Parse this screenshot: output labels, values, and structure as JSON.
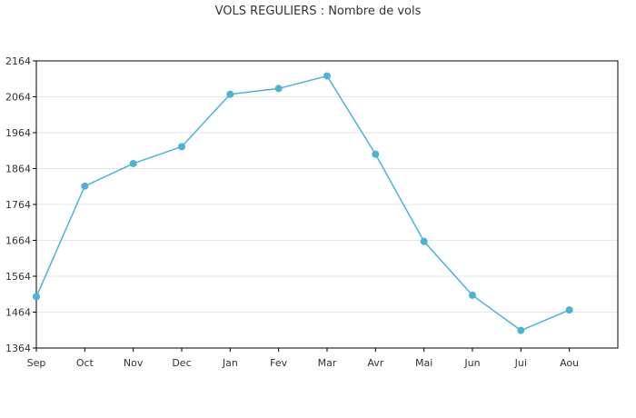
{
  "chart_data": {
    "type": "line",
    "title": "VOLS REGULIERS : Nombre de vols",
    "categories": [
      "Sep",
      "Oct",
      "Nov",
      "Dec",
      "Jan",
      "Fev",
      "Mar",
      "Avr",
      "Mai",
      "Jun",
      "Jui",
      "Aou"
    ],
    "series": [
      {
        "values": [
          1507,
          1815,
          1878,
          1925,
          2071,
          2087,
          2122,
          1904,
          1661,
          1511,
          1413,
          1470
        ]
      }
    ],
    "yticks": [
      1364,
      1464,
      1564,
      1664,
      1764,
      1864,
      1964,
      2064,
      2164
    ],
    "ylim": [
      1364,
      2164
    ],
    "grid": true,
    "line_color": "#4db3d6",
    "marker_color": "#4db3d6",
    "grid_color": "#e6e6e6"
  }
}
